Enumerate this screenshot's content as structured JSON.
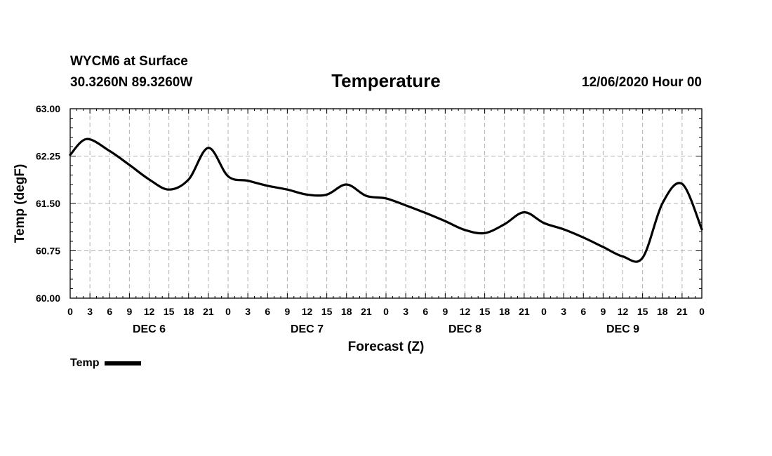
{
  "header": {
    "station": "WYCM6 at Surface",
    "coords": "30.3260N 89.3260W",
    "title": "Temperature",
    "datetime": "12/06/2020 Hour 00"
  },
  "chart_data": {
    "type": "line",
    "title": "Temperature",
    "xlabel": "Forecast (Z)",
    "ylabel": "Temp (degF)",
    "ylim": [
      60.0,
      63.0
    ],
    "xlim": [
      0,
      96
    ],
    "yticks": [
      "60.00",
      "60.75",
      "61.50",
      "62.25",
      "63.00"
    ],
    "ytick_values": [
      60.0,
      60.75,
      61.5,
      62.25,
      63.0
    ],
    "xtick_labels": [
      "0",
      "3",
      "6",
      "9",
      "12",
      "15",
      "18",
      "21",
      "0",
      "3",
      "6",
      "9",
      "12",
      "15",
      "18",
      "21",
      "0",
      "3",
      "6",
      "9",
      "12",
      "15",
      "18",
      "21",
      "0",
      "3",
      "6",
      "9",
      "12",
      "15",
      "18",
      "21",
      "0"
    ],
    "day_labels": [
      {
        "label": "DEC 6",
        "hour": 12
      },
      {
        "label": "DEC 7",
        "hour": 36
      },
      {
        "label": "DEC 8",
        "hour": 60
      },
      {
        "label": "DEC 9",
        "hour": 84
      }
    ],
    "grid": true,
    "legend": "bottom-left",
    "series": [
      {
        "name": "Temp",
        "color": "#000000",
        "x": [
          0,
          2.5,
          6,
          9,
          12,
          15,
          18,
          21,
          24,
          27,
          30,
          33,
          36,
          39,
          42,
          45,
          48,
          51,
          54,
          57,
          60,
          63,
          66,
          69,
          72,
          75,
          78,
          81,
          84,
          87,
          90,
          93,
          96
        ],
        "y": [
          62.27,
          62.52,
          62.33,
          62.11,
          61.88,
          61.72,
          61.88,
          62.38,
          61.93,
          61.86,
          61.78,
          61.72,
          61.64,
          61.64,
          61.8,
          61.62,
          61.58,
          61.47,
          61.35,
          61.22,
          61.08,
          61.03,
          61.17,
          61.36,
          61.19,
          61.09,
          60.96,
          60.81,
          60.66,
          60.64,
          61.5,
          61.81,
          61.09
        ]
      }
    ]
  },
  "legend": {
    "label": "Temp"
  }
}
